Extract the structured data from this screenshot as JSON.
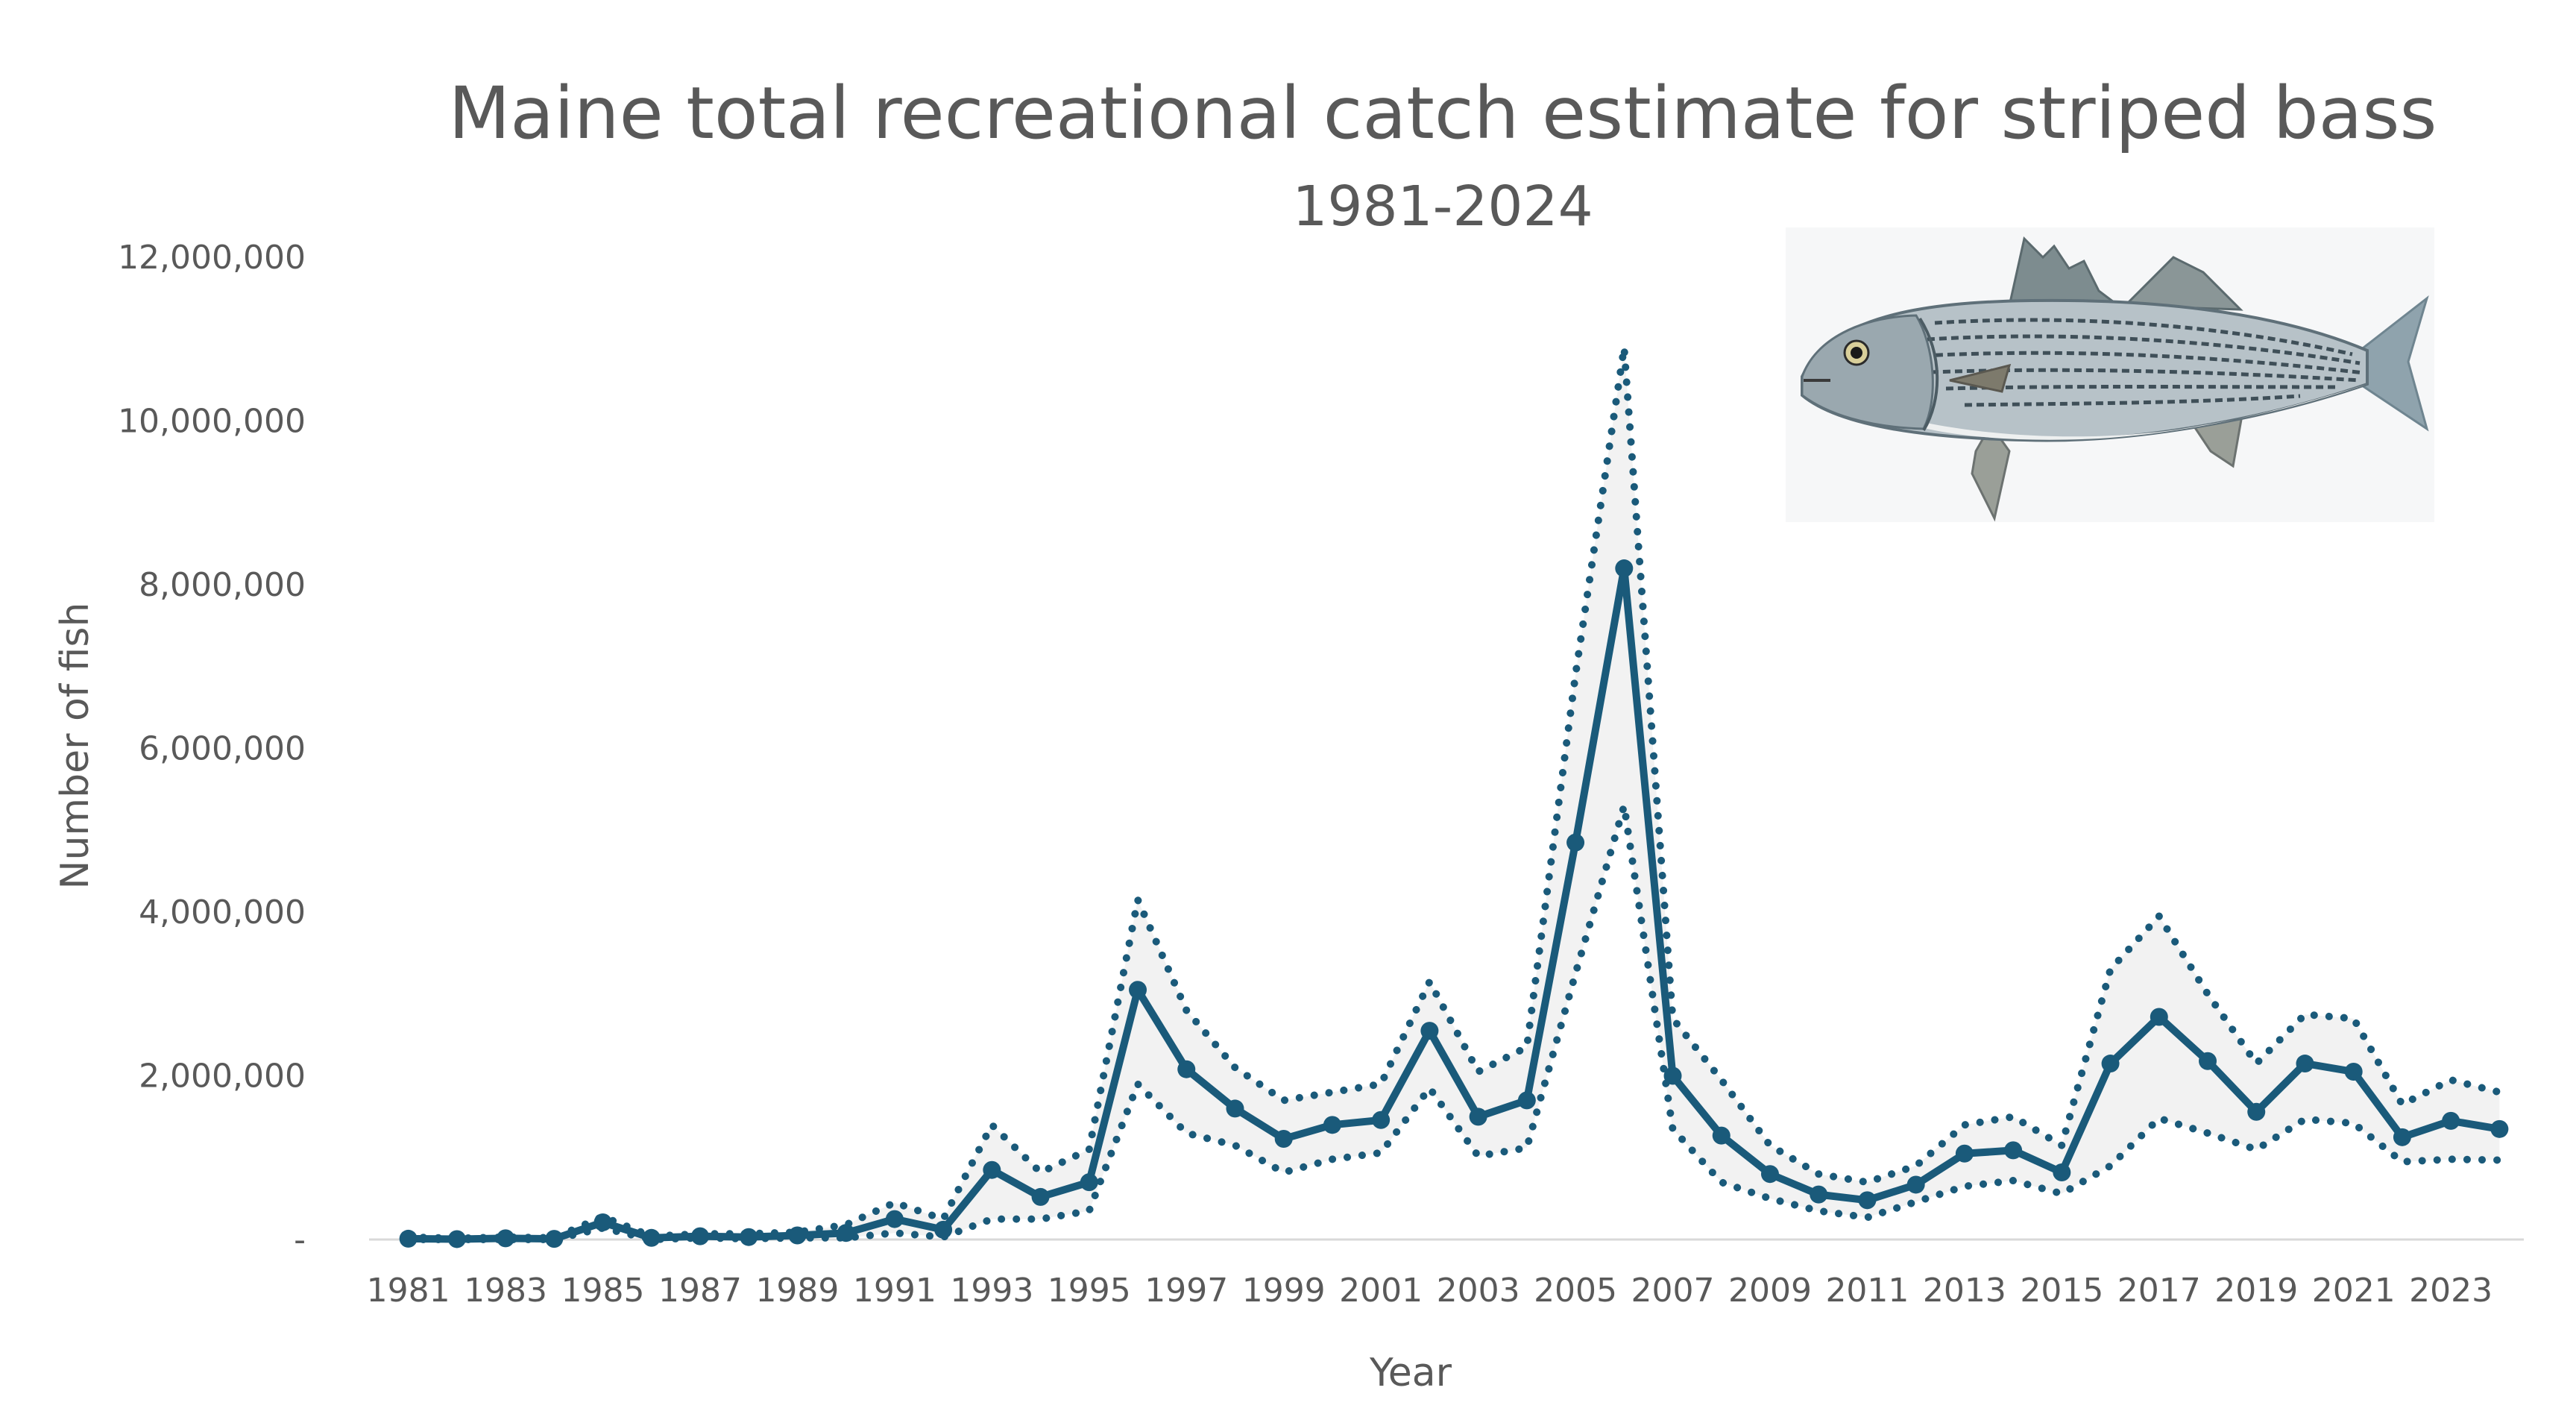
{
  "colors": {
    "series": "#1a5a7a",
    "ci_band": "#f2f2f2",
    "text": "#595959",
    "axis": "#d9d9d9"
  },
  "fish_illustration": {
    "icon": "striped-bass-illustration"
  },
  "chart_data": {
    "type": "line",
    "title": "Maine total recreational catch estimate for striped bass",
    "subtitle": "1981-2024",
    "xlabel": "Year",
    "ylabel": "Number of fish",
    "ylim": [
      0,
      12000000
    ],
    "yticks": [
      0,
      2000000,
      4000000,
      6000000,
      8000000,
      10000000,
      12000000
    ],
    "ytick_labels": [
      "-",
      "2,000,000",
      "4,000,000",
      "6,000,000",
      "8,000,000",
      "10,000,000",
      "12,000,000"
    ],
    "xtick_labels": [
      "1981",
      "1983",
      "1985",
      "1987",
      "1989",
      "1991",
      "1993",
      "1995",
      "1997",
      "1999",
      "2001",
      "2003",
      "2005",
      "2007",
      "2009",
      "2011",
      "2013",
      "2015",
      "2017",
      "2019",
      "2021",
      "2023"
    ],
    "x": [
      1981,
      1982,
      1983,
      1984,
      1985,
      1986,
      1987,
      1988,
      1989,
      1990,
      1991,
      1992,
      1993,
      1994,
      1995,
      1996,
      1997,
      1998,
      1999,
      2000,
      2001,
      2002,
      2003,
      2004,
      2005,
      2006,
      2007,
      2008,
      2009,
      2010,
      2011,
      2012,
      2013,
      2014,
      2015,
      2016,
      2017,
      2018,
      2019,
      2020,
      2021,
      2022,
      2023,
      2024
    ],
    "grid": false,
    "series": [
      {
        "role": "estimate",
        "style": "solid",
        "values": [
          10000,
          5000,
          15000,
          8000,
          210000,
          20000,
          40000,
          30000,
          50000,
          80000,
          250000,
          120000,
          850000,
          520000,
          700000,
          3050000,
          2080000,
          1600000,
          1230000,
          1400000,
          1460000,
          2550000,
          1500000,
          1700000,
          4850000,
          8200000,
          2000000,
          1270000,
          800000,
          550000,
          480000,
          670000,
          1050000,
          1090000,
          820000,
          2150000,
          2720000,
          2180000,
          1560000,
          2150000,
          2050000,
          1250000,
          1450000,
          1350000
        ]
      },
      {
        "role": "upper_bound",
        "style": "dotted",
        "values": [
          30000,
          15000,
          30000,
          20000,
          280000,
          40000,
          70000,
          70000,
          90000,
          180000,
          450000,
          250000,
          1400000,
          820000,
          1100000,
          4150000,
          2800000,
          2100000,
          1700000,
          1800000,
          1900000,
          3150000,
          2050000,
          2350000,
          6900000,
          10900000,
          2700000,
          1950000,
          1150000,
          800000,
          700000,
          900000,
          1400000,
          1500000,
          1150000,
          3300000,
          3950000,
          3000000,
          2150000,
          2750000,
          2700000,
          1650000,
          1950000,
          1800000
        ]
      },
      {
        "role": "lower_bound",
        "style": "dotted",
        "values": [
          0,
          0,
          0,
          0,
          140000,
          0,
          20000,
          10000,
          20000,
          20000,
          80000,
          30000,
          250000,
          250000,
          350000,
          1900000,
          1300000,
          1150000,
          820000,
          980000,
          1060000,
          1850000,
          1020000,
          1120000,
          3250000,
          5300000,
          1350000,
          700000,
          500000,
          350000,
          270000,
          460000,
          650000,
          720000,
          560000,
          900000,
          1480000,
          1300000,
          1100000,
          1470000,
          1420000,
          950000,
          980000,
          970000
        ]
      }
    ]
  }
}
